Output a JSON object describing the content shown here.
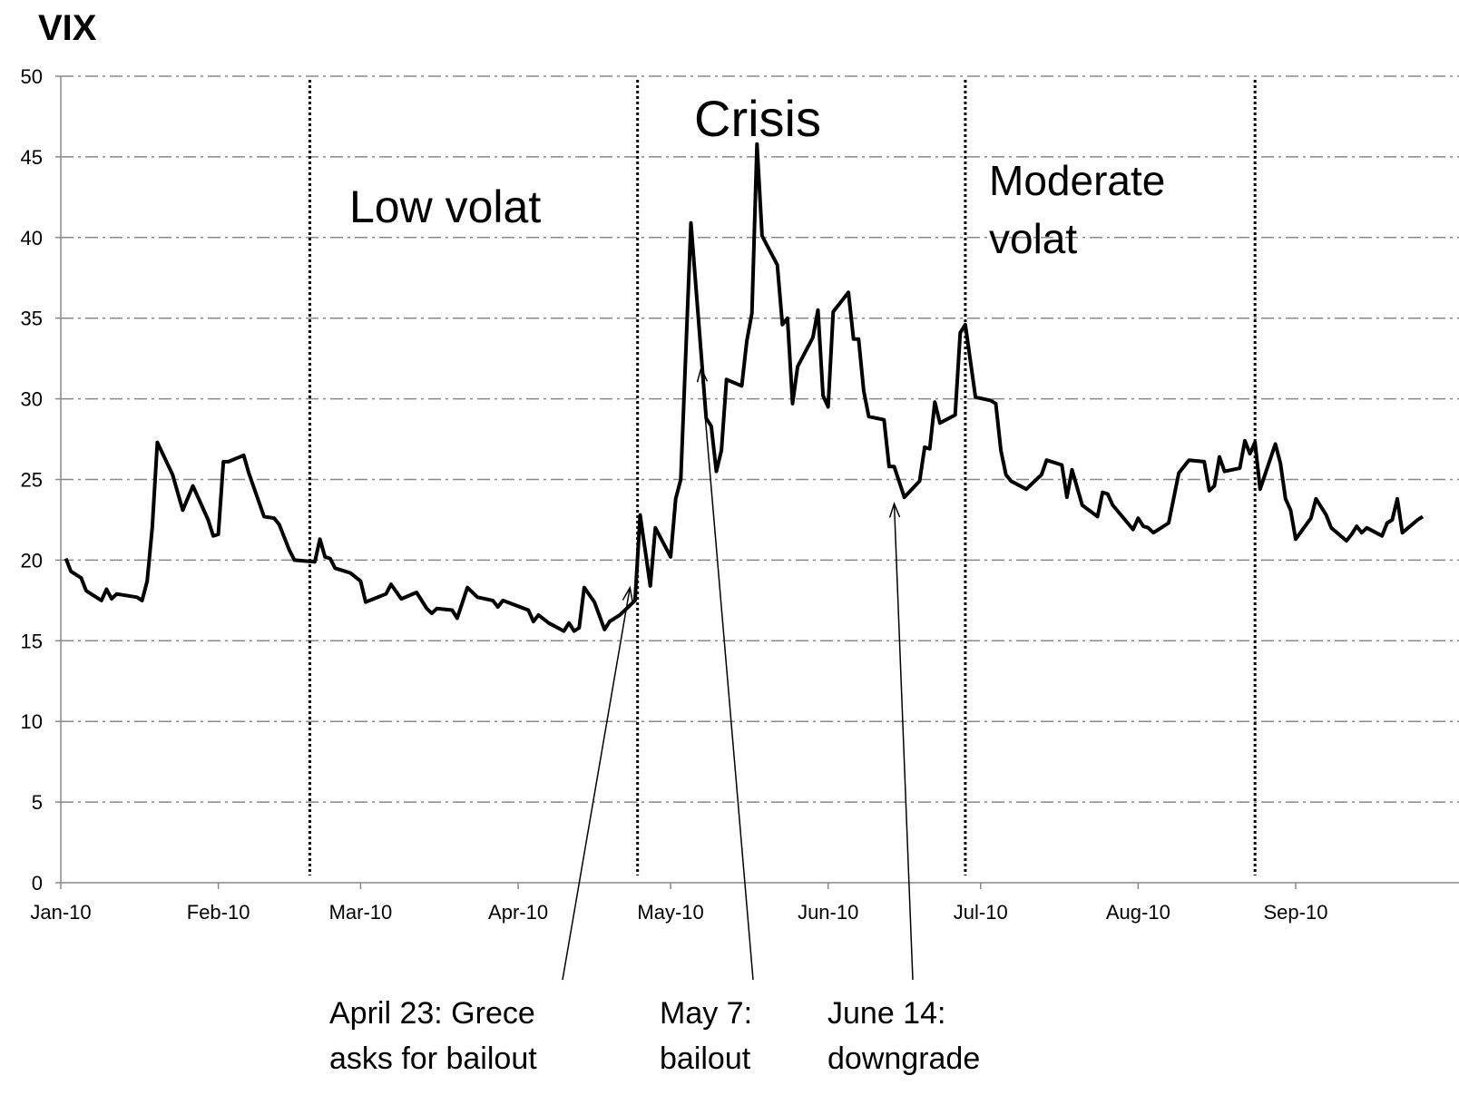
{
  "chart_data": {
    "type": "line",
    "title": "VIX",
    "color": "#000000",
    "x": [
      1,
      2,
      4,
      5,
      8,
      9,
      10,
      11,
      15,
      16,
      17,
      18,
      19,
      22,
      24,
      26,
      29,
      30,
      31,
      32,
      33,
      36,
      37,
      40,
      42,
      43,
      45,
      46,
      50,
      51,
      52,
      53,
      54,
      57,
      59,
      60,
      64,
      65,
      67,
      70,
      72,
      73,
      74,
      77,
      78,
      80,
      82,
      85,
      86,
      87,
      92,
      93,
      94,
      96,
      99,
      100,
      101,
      102,
      103,
      105,
      107,
      108,
      110,
      113,
      114,
      116,
      117,
      120,
      121,
      122,
      124,
      127,
      128,
      129,
      130,
      131,
      134,
      135,
      136,
      137,
      138,
      141,
      142,
      143,
      144,
      145,
      148,
      149,
      150,
      151,
      152,
      155,
      156,
      157,
      158,
      159,
      162,
      163,
      164,
      166,
      169,
      170,
      171,
      172,
      173,
      176,
      177,
      178,
      180,
      183,
      184,
      185,
      186,
      187,
      190,
      191,
      193,
      194,
      197,
      198,
      199,
      201,
      204,
      205,
      206,
      207,
      211,
      212,
      213,
      214,
      215,
      218,
      220,
      222,
      225,
      226,
      227,
      228,
      229,
      232,
      233,
      234,
      235,
      236,
      239,
      240,
      241,
      242,
      243,
      246,
      247,
      249,
      250,
      253,
      254,
      255,
      256,
      257,
      260,
      261,
      262,
      263,
      264,
      267,
      268
    ],
    "values": [
      20.1,
      19.3,
      18.9,
      18.1,
      17.5,
      18.2,
      17.6,
      17.9,
      17.7,
      17.5,
      18.7,
      22.0,
      27.3,
      25.3,
      23.1,
      24.6,
      22.5,
      21.5,
      21.6,
      26.1,
      26.1,
      26.5,
      25.4,
      22.7,
      22.6,
      22.2,
      20.6,
      20.0,
      19.9,
      21.3,
      20.2,
      20.1,
      19.5,
      19.2,
      18.7,
      17.4,
      17.9,
      18.5,
      17.6,
      18.0,
      17.0,
      16.7,
      17.0,
      16.9,
      16.4,
      18.3,
      17.7,
      17.5,
      17.1,
      17.5,
      16.9,
      16.2,
      16.6,
      16.1,
      15.6,
      16.1,
      15.6,
      15.8,
      18.3,
      17.4,
      15.7,
      16.2,
      16.6,
      17.5,
      22.8,
      18.4,
      22.0,
      20.2,
      23.8,
      25.0,
      40.9,
      28.8,
      28.3,
      25.5,
      26.8,
      31.2,
      30.8,
      33.6,
      35.3,
      45.8,
      40.1,
      38.3,
      34.6,
      35.0,
      29.7,
      32.0,
      33.8,
      35.5,
      30.2,
      29.5,
      35.4,
      36.6,
      33.7,
      33.7,
      30.5,
      28.9,
      28.7,
      25.8,
      25.8,
      23.9,
      24.9,
      27.0,
      26.9,
      29.8,
      28.5,
      29.0,
      34.1,
      34.6,
      30.1,
      29.9,
      29.7,
      26.8,
      25.3,
      24.9,
      24.4,
      24.7,
      25.3,
      26.2,
      25.9,
      23.9,
      25.6,
      23.4,
      22.7,
      24.2,
      24.1,
      23.4,
      21.9,
      22.6,
      22.1,
      22.0,
      21.7,
      22.3,
      25.4,
      26.2,
      26.1,
      24.3,
      24.6,
      26.4,
      25.5,
      25.7,
      27.4,
      26.6,
      27.3,
      24.4,
      27.2,
      26.0,
      23.8,
      23.1,
      21.3,
      22.6,
      23.8,
      22.8,
      22.0,
      21.2,
      21.6,
      22.1,
      21.7,
      22.0,
      21.5,
      22.3,
      22.5,
      23.8,
      21.7,
      22.5,
      22.7
    ],
    "xlim": [
      0,
      268
    ],
    "xticks": [
      {
        "value": 0,
        "label": "Jan-10"
      },
      {
        "value": 31,
        "label": "Feb-10"
      },
      {
        "value": 59,
        "label": "Mar-10"
      },
      {
        "value": 90,
        "label": "Apr-10"
      },
      {
        "value": 120,
        "label": "May-10"
      },
      {
        "value": 151,
        "label": "Jun-10"
      },
      {
        "value": 181,
        "label": "Jul-10"
      },
      {
        "value": 212,
        "label": "Aug-10"
      },
      {
        "value": 243,
        "label": "Sep-10"
      }
    ],
    "ylim": [
      0,
      50
    ],
    "yticks": [
      0,
      5,
      10,
      15,
      20,
      25,
      30,
      35,
      40,
      45,
      50
    ],
    "grid": true,
    "period_dividers": [
      49,
      113.5,
      178,
      235
    ],
    "regions": [
      {
        "label": [
          "Low volat"
        ]
      },
      {
        "label": [
          "Crisis"
        ]
      },
      {
        "label": [
          "Moderate",
          "volat"
        ]
      }
    ],
    "events": [
      {
        "x": 112,
        "y": 18.3,
        "label": [
          "April 23: Grece",
          "asks for bailout"
        ]
      },
      {
        "x": 126,
        "y": 31.9,
        "label": [
          "May 7:",
          "bailout"
        ]
      },
      {
        "x": 164,
        "y": 23.5,
        "label": [
          "June 14:",
          "downgrade"
        ]
      }
    ]
  }
}
